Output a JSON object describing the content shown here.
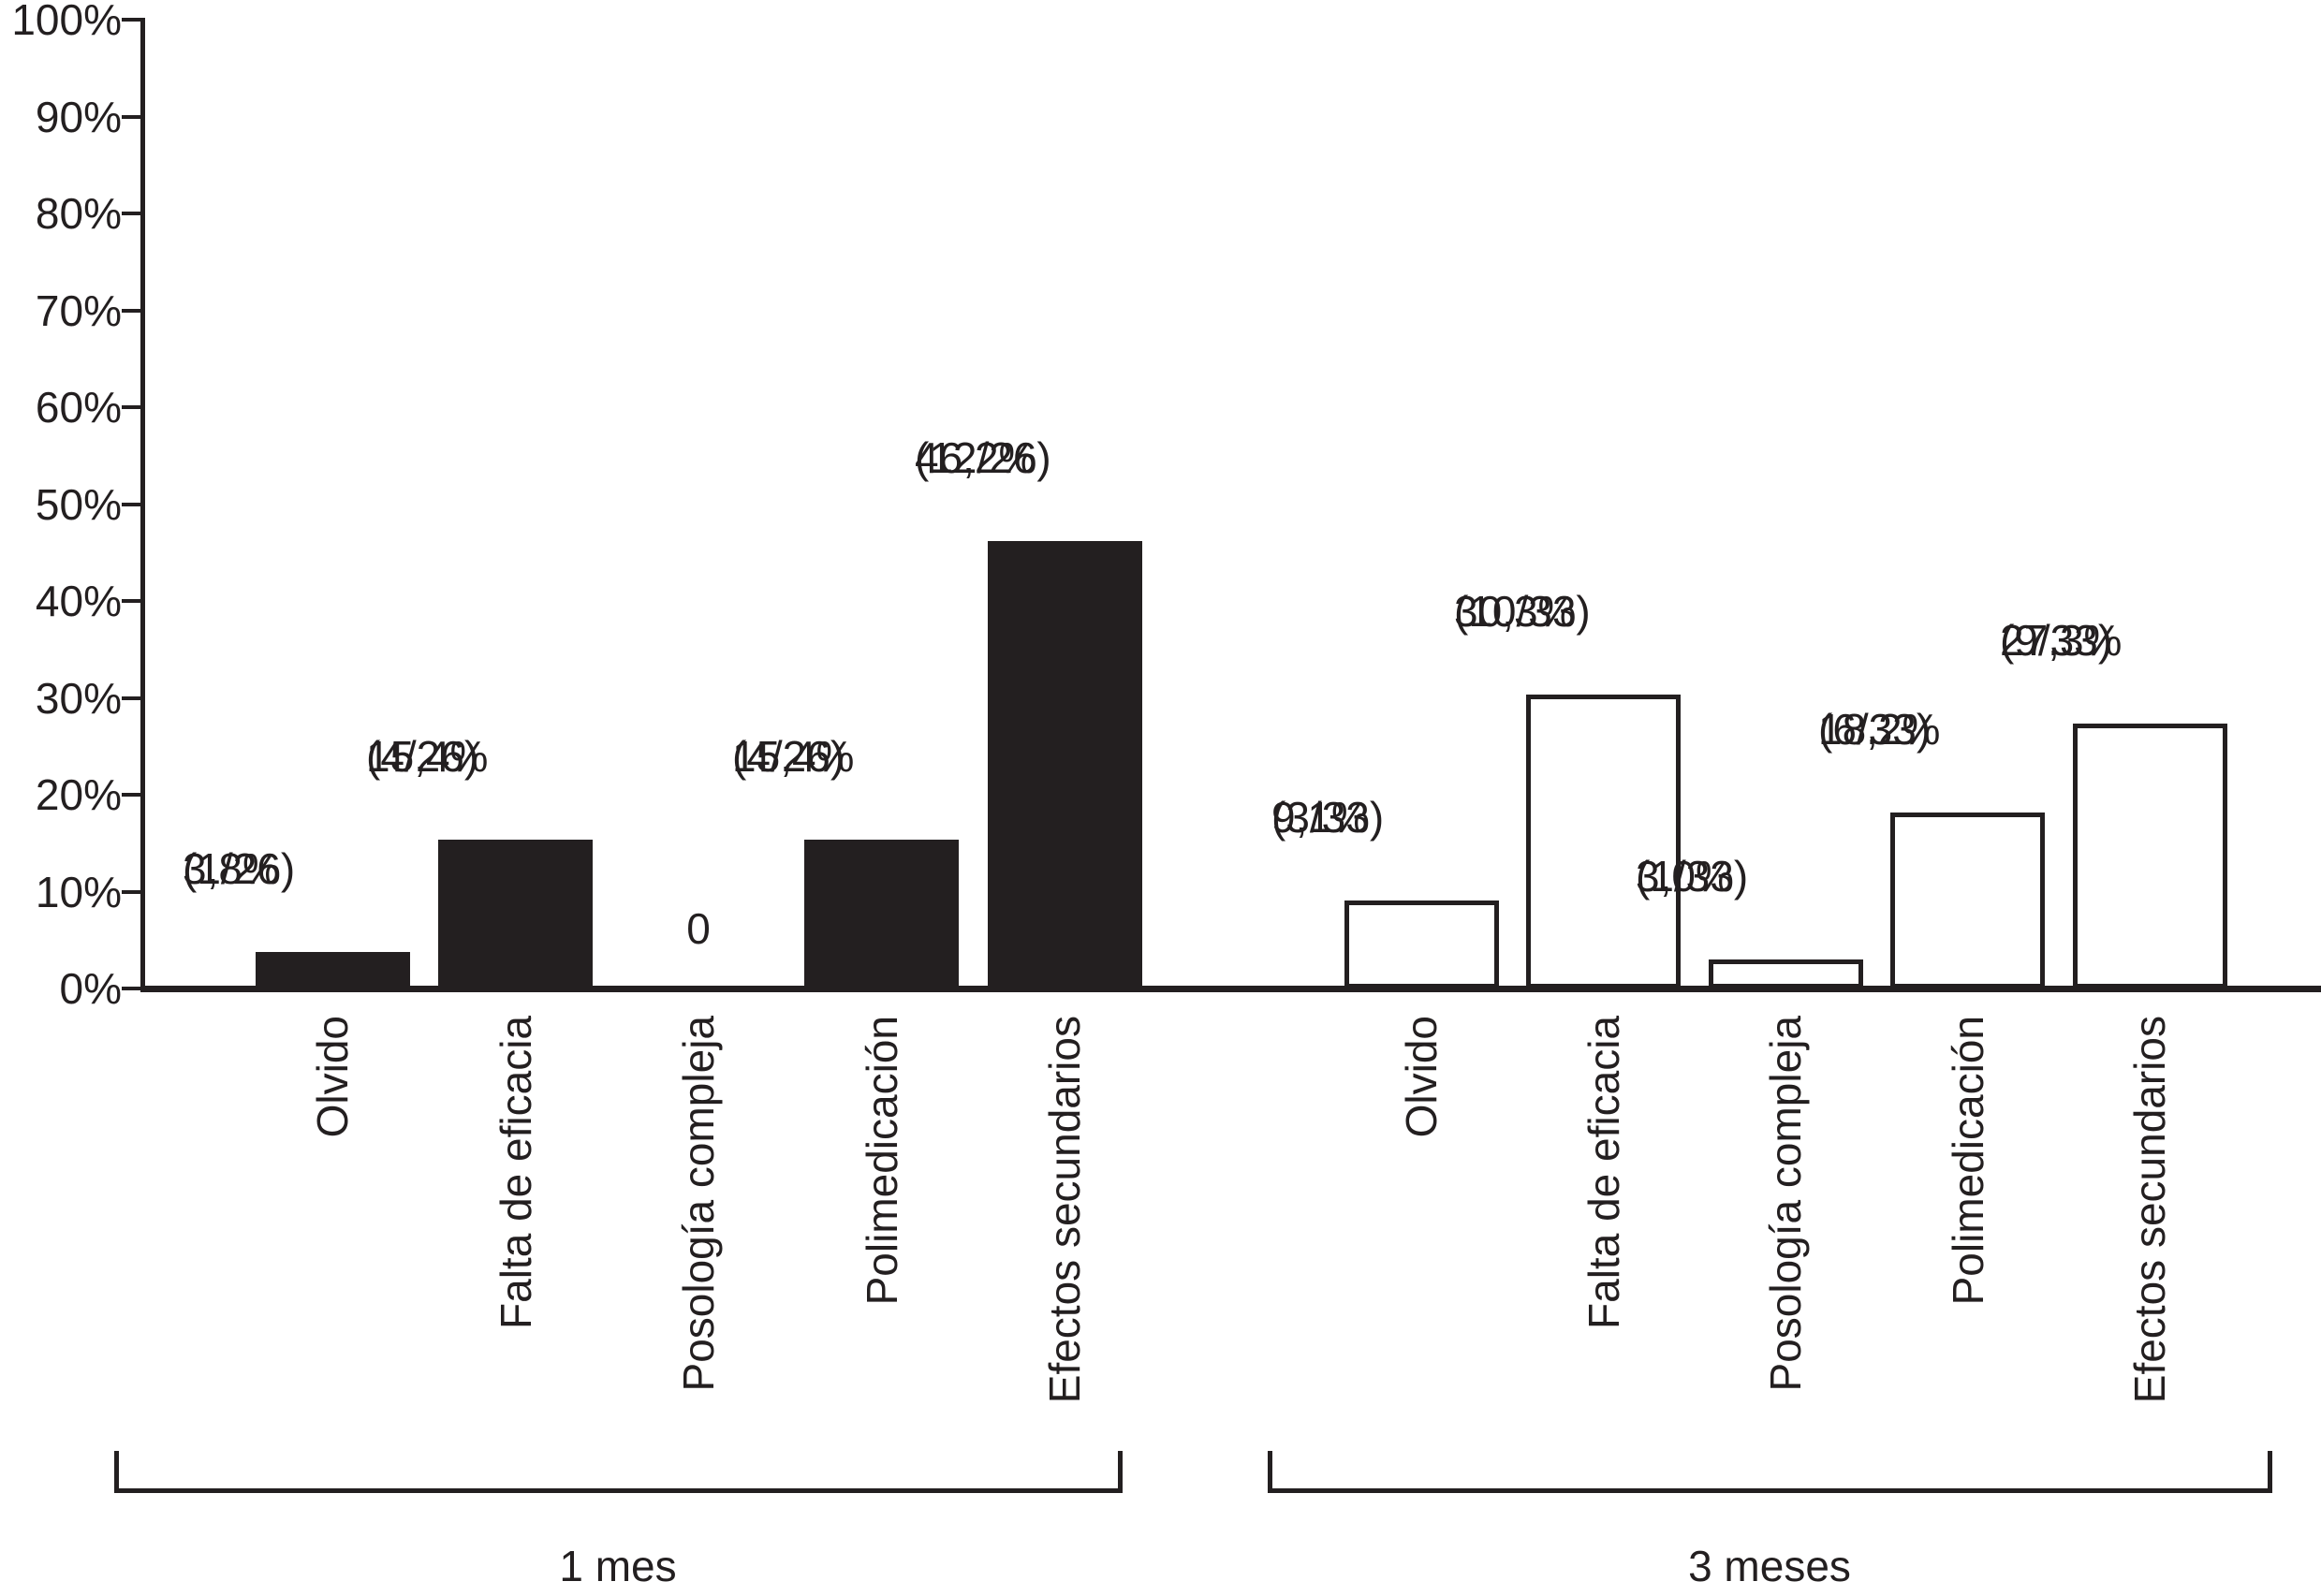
{
  "chart_data": {
    "type": "bar",
    "title": "",
    "xlabel": "",
    "ylabel": "",
    "grid": false,
    "legend_position": "none",
    "y_axis": {
      "min": 0,
      "max": 100,
      "step": 10,
      "tick_suffix": "%",
      "tick_labels": [
        "0%",
        "10%",
        "20%",
        "30%",
        "40%",
        "50%",
        "60%",
        "70%",
        "80%",
        "90%",
        "100%"
      ]
    },
    "categories": [
      "Olvido",
      "Falta de eficacia",
      "Posología compleja",
      "Polimedicación",
      "Efectos secundarios"
    ],
    "groups": [
      {
        "name": "1 mes",
        "style": "filled",
        "denominator": 26,
        "bars": [
          {
            "category": "Olvido",
            "value_pct": 3.8,
            "pct_label": "3,8%",
            "count_label": "(1/26)"
          },
          {
            "category": "Falta de eficacia",
            "value_pct": 15.4,
            "pct_label": "15,4%",
            "count_label": "(4/26)"
          },
          {
            "category": "Posología compleja",
            "value_pct": 0,
            "pct_label": "0",
            "count_label": ""
          },
          {
            "category": "Polimedicación",
            "value_pct": 15.4,
            "pct_label": "15,4%",
            "count_label": "(4/26)"
          },
          {
            "category": "Efectos secundarios",
            "value_pct": 46.2,
            "pct_label": "46,2%",
            "count_label": "(12/26)"
          }
        ]
      },
      {
        "name": "3 meses",
        "style": "open",
        "denominator": 33,
        "bars": [
          {
            "category": "Olvido",
            "value_pct": 9.1,
            "pct_label": "9,1%",
            "count_label": "(3/33)"
          },
          {
            "category": "Falta de eficacia",
            "value_pct": 30.3,
            "pct_label": "30,3%",
            "count_label": "(10/33)"
          },
          {
            "category": "Posología compleja",
            "value_pct": 3.0,
            "pct_label": "3,0%",
            "count_label": "(1/33)"
          },
          {
            "category": "Polimedicación",
            "value_pct": 18.2,
            "pct_label": "18,2%",
            "count_label": "(6/33)"
          },
          {
            "category": "Efectos secundarios",
            "value_pct": 27.3,
            "pct_label": "27,3%",
            "count_label": "(9/33)"
          }
        ]
      }
    ],
    "colors": {
      "bar_fill": "#231f20",
      "bar_outline": "#231f20",
      "open_bar_fill": "#ffffff",
      "text": "#231f20",
      "background": "#ffffff"
    }
  }
}
